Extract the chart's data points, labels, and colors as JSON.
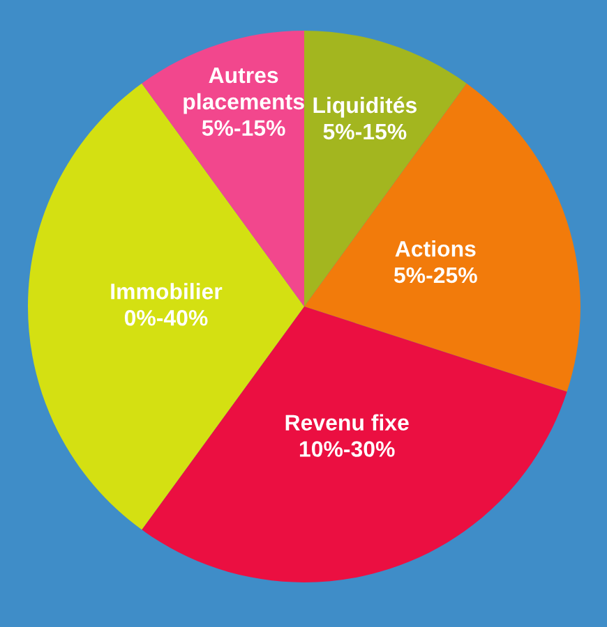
{
  "chart_data": {
    "type": "pie",
    "categories": [
      "Liquidités\n5%-15%",
      "Actions\n5%-25%",
      "Revenu fixe\n10%-30%",
      "Immobilier\n0%-40%",
      "Autres\nplacements\n5%-15%"
    ],
    "values": [
      10,
      20,
      30,
      30,
      10
    ],
    "colors": [
      "#a3b61f",
      "#f27b0b",
      "#eb0f41",
      "#d4e012",
      "#f2478d"
    ]
  }
}
